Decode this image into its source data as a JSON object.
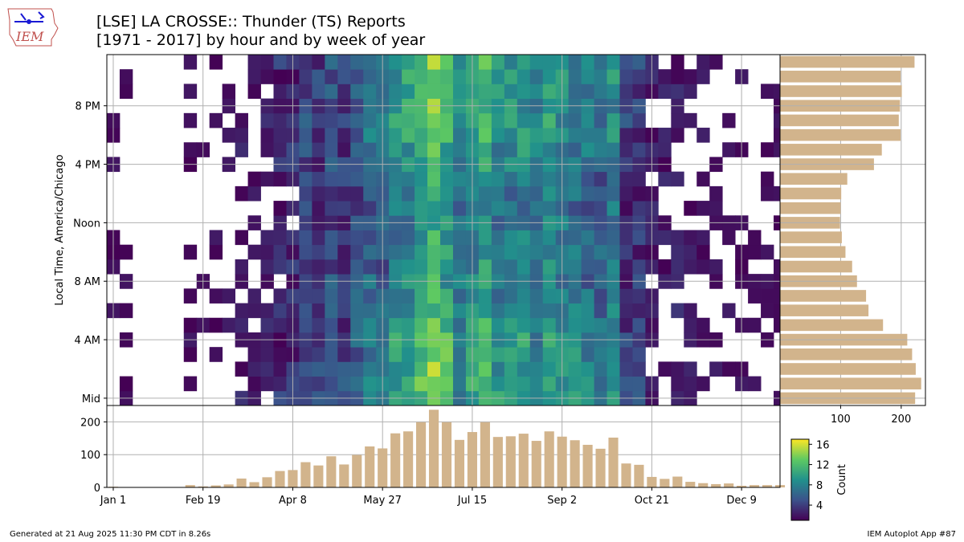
{
  "title_line1": "[LSE] LA CROSSE:: Thunder (TS) Reports",
  "title_line2": "[1971 - 2017] by hour and by week of year",
  "footer_left": "Generated at 21 Aug 2025 11:30 PM CDT in 8.26s",
  "footer_right": "IEM Autoplot App #87",
  "logo_text": "IEM",
  "colors": {
    "bar": "#d2b48c",
    "grid": "#b0b0b0",
    "viridis": [
      "#440154",
      "#3b528b",
      "#21918c",
      "#5ec962",
      "#fde725"
    ]
  },
  "chart_data": [
    {
      "type": "heatmap",
      "ylabel": "Local Time, America/Chicago",
      "x_tick_labels": [
        "Jan 1",
        "Feb 19",
        "Apr 8",
        "May 27",
        "Jul 15",
        "Sep 2",
        "Oct 21",
        "Dec 9"
      ],
      "x_tick_weeks": [
        0,
        7,
        14,
        21,
        28,
        35,
        42,
        49
      ],
      "y_tick_labels": [
        "Mid",
        "4 AM",
        "8 AM",
        "Noon",
        "4 PM",
        "8 PM"
      ],
      "y_tick_hours": [
        0,
        4,
        8,
        12,
        16,
        20
      ],
      "colorbar": {
        "label": "Count",
        "colormap": "viridis",
        "ticks": [
          4,
          8,
          12,
          16
        ],
        "range": [
          1,
          17
        ]
      },
      "weeks": 53,
      "hours": 24,
      "grid": true
    },
    {
      "type": "bar",
      "orientation": "horizontal",
      "description_axis": "hour of day",
      "categories_hours": [
        0,
        1,
        2,
        3,
        4,
        5,
        6,
        7,
        8,
        9,
        10,
        11,
        12,
        13,
        14,
        15,
        16,
        17,
        18,
        19,
        20,
        21,
        22,
        23
      ],
      "values": [
        223,
        233,
        224,
        218,
        210,
        170,
        146,
        142,
        127,
        119,
        108,
        102,
        99,
        100,
        101,
        111,
        155,
        168,
        199,
        196,
        198,
        201,
        199,
        222
      ],
      "xlim": [
        0,
        240
      ],
      "x_ticks": [
        100,
        200
      ],
      "grid": true
    },
    {
      "type": "bar",
      "description_axis": "week of year",
      "values": [
        2,
        1,
        0,
        0,
        0,
        0,
        7,
        3,
        6,
        9,
        27,
        16,
        31,
        50,
        53,
        77,
        67,
        95,
        70,
        99,
        125,
        119,
        165,
        171,
        199,
        237,
        199,
        145,
        169,
        199,
        154,
        156,
        164,
        142,
        171,
        155,
        144,
        130,
        118,
        152,
        73,
        69,
        32,
        26,
        33,
        17,
        13,
        10,
        12,
        5,
        7,
        7,
        7
      ],
      "ylim": [
        0,
        250
      ],
      "y_ticks": [
        0,
        100,
        200
      ],
      "grid": true
    }
  ]
}
